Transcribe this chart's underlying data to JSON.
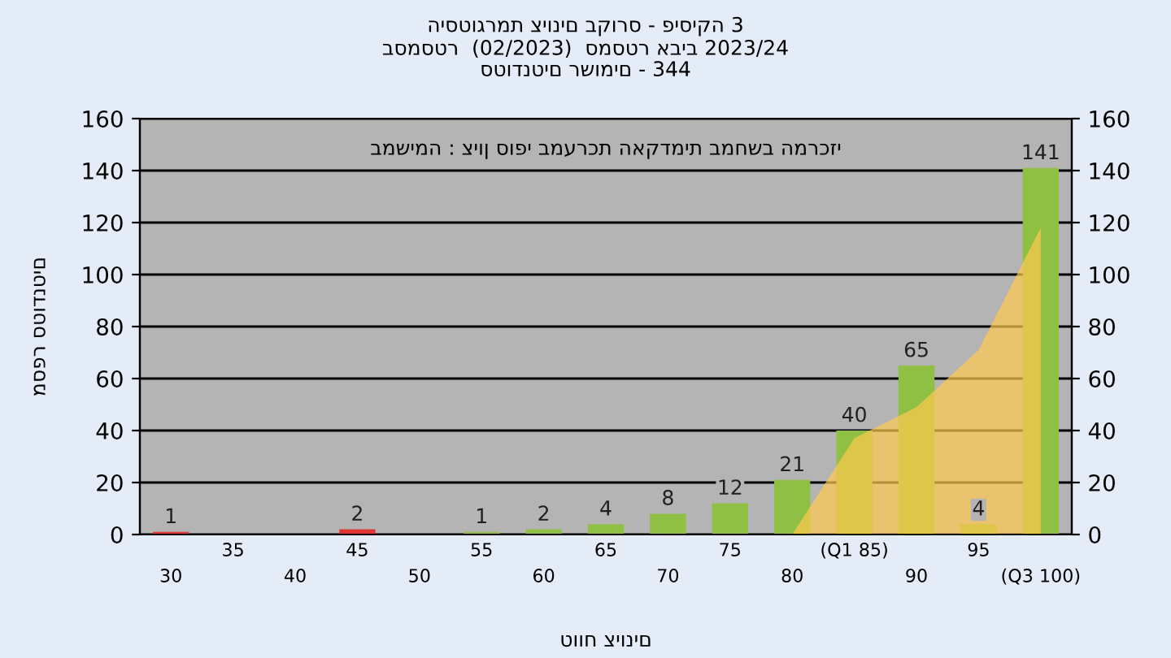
{
  "chart_data": {
    "type": "bar",
    "title": "היסטוגרמת ציונים בקורס - פיסיקה 3",
    "subtitle": "בסמסטר  (02/2023)  סמסטר אביב 2023/24\nסטודנטים רשומים - 344",
    "xlabel": "טווח ציונים",
    "ylabel": "מספר סטודנטים",
    "annotations": [
      "במשימה : ציון סופי במערכת האקדמית במחשב המרכזי"
    ],
    "categories": [
      "30",
      "35",
      "40",
      "45",
      "50",
      "55",
      "60",
      "65",
      "70",
      "75",
      "80",
      "(Q1 85)",
      "90",
      "95",
      "(Q3 100)"
    ],
    "series": [
      {
        "type": "area",
        "color": "#ffc94f",
        "values": [
          null,
          null,
          null,
          null,
          null,
          null,
          null,
          null,
          null,
          null,
          0,
          37,
          49,
          71,
          118
        ]
      },
      {
        "colors": [
          "#e03535",
          "#8fc044",
          "#8fc044",
          "#e03535",
          "#8fc044",
          "#8fc044",
          "#8fc044",
          "#8fc044",
          "#8fc044",
          "#8fc044",
          "#8fc044",
          "#8fc044",
          "#8fc044",
          "#8fc044",
          "#8fc044"
        ],
        "values": [
          1,
          0,
          0,
          2,
          0,
          1,
          2,
          4,
          8,
          12,
          21,
          40,
          65,
          4,
          141
        ],
        "value_labels": [
          "1",
          null,
          null,
          "2",
          null,
          "1",
          "2",
          "4",
          "8",
          "12",
          "21",
          "40",
          "65",
          "4",
          "141"
        ]
      }
    ],
    "ylim": [
      0,
      160
    ],
    "yticks": [
      0,
      20,
      40,
      60,
      80,
      100,
      120,
      140,
      160
    ],
    "y2lim": [
      0,
      160
    ],
    "y2ticks": [
      0,
      20,
      40,
      60,
      80,
      100,
      120,
      140,
      160
    ],
    "grid": true
  }
}
